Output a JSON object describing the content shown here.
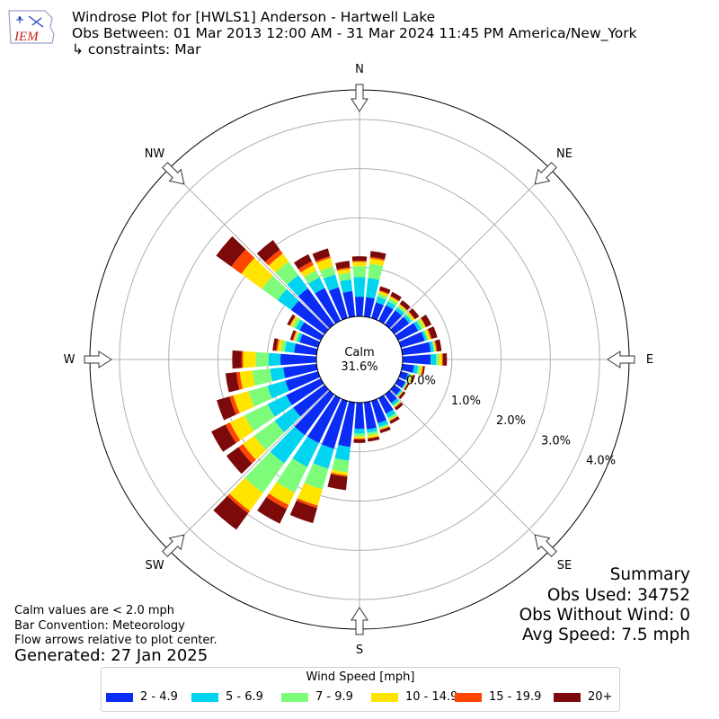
{
  "header": {
    "logo_text": "IEM",
    "line1": "Windrose Plot for [HWLS1] Anderson - Hartwell Lake",
    "line2": "Obs Between: 01 Mar 2013 12:00 AM - 31 Mar 2024 11:45 PM America/New_York",
    "line3": "↳ constraints: Mar"
  },
  "chart_data": {
    "type": "windrose",
    "calm": {
      "label": "Calm",
      "value_text": "31.6%",
      "value": 31.6
    },
    "radial_ticks": [
      0.0,
      1.0,
      2.0,
      3.0,
      4.0
    ],
    "radial_tick_labels": [
      "0.0%",
      "1.0%",
      "2.0%",
      "3.0%",
      "4.0%"
    ],
    "rmax": 4.6,
    "directions": [
      "N",
      "NE",
      "E",
      "SE",
      "S",
      "SW",
      "W",
      "NW"
    ],
    "bin_labels": [
      "2 - 4.9",
      "5 - 6.9",
      "7 - 9.9",
      "10 - 14.9",
      "15 - 19.9",
      "20+"
    ],
    "bin_colors": [
      "#0a2cf5",
      "#00d4f0",
      "#7dfc7a",
      "#ffe400",
      "#ff4600",
      "#7d0a0a"
    ],
    "sector_width_deg": 10,
    "sectors": [
      {
        "dir": 0,
        "values": [
          0.4,
          0.4,
          0.22,
          0.09,
          0.02,
          0.09
        ]
      },
      {
        "dir": 10,
        "values": [
          0.4,
          0.39,
          0.29,
          0.11,
          0.03,
          0.12
        ]
      },
      {
        "dir": 20,
        "values": [
          0.33,
          0.12,
          0.07,
          0.05,
          0.02,
          0.08
        ]
      },
      {
        "dir": 30,
        "values": [
          0.35,
          0.09,
          0.07,
          0.04,
          0.01,
          0.09
        ]
      },
      {
        "dir": 40,
        "values": [
          0.36,
          0.07,
          0.05,
          0.03,
          0.01,
          0.09
        ]
      },
      {
        "dir": 50,
        "values": [
          0.37,
          0.06,
          0.04,
          0.04,
          0.01,
          0.1
        ]
      },
      {
        "dir": 60,
        "values": [
          0.45,
          0.07,
          0.06,
          0.04,
          0.01,
          0.12
        ]
      },
      {
        "dir": 70,
        "values": [
          0.5,
          0.05,
          0.03,
          0.05,
          0.02,
          0.12
        ]
      },
      {
        "dir": 80,
        "values": [
          0.58,
          0.06,
          0.03,
          0.02,
          0.02,
          0.09
        ]
      },
      {
        "dir": 90,
        "values": [
          0.57,
          0.11,
          0.06,
          0.06,
          0.02,
          0.08
        ]
      },
      {
        "dir": 100,
        "values": [
          0.24,
          0.08,
          0.05,
          0.04,
          0.02,
          0.03
        ]
      },
      {
        "dir": 110,
        "values": [
          0.15,
          0.04,
          0.03,
          0.03,
          0.01,
          0.04
        ]
      },
      {
        "dir": 120,
        "values": [
          0.16,
          0.02,
          0.02,
          0.01,
          0.01,
          0.03
        ]
      },
      {
        "dir": 130,
        "values": [
          0.16,
          0.03,
          0.02,
          0.01,
          0.01,
          0.05
        ]
      },
      {
        "dir": 140,
        "values": [
          0.22,
          0.06,
          0.03,
          0.02,
          0.01,
          0.06
        ]
      },
      {
        "dir": 150,
        "values": [
          0.35,
          0.09,
          0.05,
          0.02,
          0.01,
          0.06
        ]
      },
      {
        "dir": 160,
        "values": [
          0.47,
          0.08,
          0.04,
          0.02,
          0.01,
          0.06
        ]
      },
      {
        "dir": 170,
        "values": [
          0.55,
          0.07,
          0.06,
          0.05,
          0.01,
          0.06
        ]
      },
      {
        "dir": 180,
        "values": [
          0.53,
          0.1,
          0.06,
          0.04,
          0.02,
          0.07
        ]
      },
      {
        "dir": 190,
        "values": [
          0.91,
          0.28,
          0.24,
          0.06,
          0.03,
          0.27
        ]
      },
      {
        "dir": 200,
        "values": [
          1.01,
          0.42,
          0.44,
          0.34,
          0.05,
          0.32
        ]
      },
      {
        "dir": 210,
        "values": [
          1.01,
          0.54,
          0.58,
          0.28,
          0.09,
          0.33
        ]
      },
      {
        "dir": 220,
        "values": [
          1.02,
          0.71,
          0.74,
          0.45,
          0.06,
          0.41
        ]
      },
      {
        "dir": 230,
        "values": [
          0.79,
          0.46,
          0.52,
          0.28,
          0.11,
          0.3
        ]
      },
      {
        "dir": 240,
        "values": [
          0.78,
          0.42,
          0.52,
          0.33,
          0.1,
          0.32
        ]
      },
      {
        "dir": 250,
        "values": [
          0.69,
          0.38,
          0.4,
          0.32,
          0.08,
          0.27
        ]
      },
      {
        "dir": 260,
        "values": [
          0.68,
          0.27,
          0.36,
          0.26,
          0.07,
          0.22
        ]
      },
      {
        "dir": 270,
        "values": [
          0.73,
          0.24,
          0.26,
          0.26,
          0.03,
          0.19
        ]
      },
      {
        "dir": 280,
        "values": [
          0.46,
          0.19,
          0.08,
          0.07,
          0.03,
          0.07
        ]
      },
      {
        "dir": 290,
        "values": [
          0.39,
          0.06,
          0.04,
          0.03,
          0.02,
          0.05
        ]
      },
      {
        "dir": 300,
        "values": [
          0.48,
          0.09,
          0.07,
          0.05,
          0.01,
          0.06
        ]
      },
      {
        "dir": 310,
        "values": [
          0.84,
          0.34,
          0.39,
          0.52,
          0.25,
          0.38
        ]
      },
      {
        "dir": 320,
        "values": [
          0.91,
          0.33,
          0.34,
          0.2,
          0.1,
          0.24
        ]
      },
      {
        "dir": 330,
        "values": [
          0.74,
          0.24,
          0.16,
          0.12,
          0.08,
          0.16
        ]
      },
      {
        "dir": 340,
        "values": [
          0.65,
          0.27,
          0.17,
          0.18,
          0.04,
          0.16
        ]
      },
      {
        "dir": 350,
        "values": [
          0.52,
          0.24,
          0.14,
          0.08,
          0.03,
          0.13
        ]
      }
    ]
  },
  "footer": {
    "calm_note": "Calm values are < 2.0 mph",
    "bar_convention": "Bar Convention: Meteorology",
    "flow_note": "Flow arrows relative to plot center.",
    "generated": "Generated: 27 Jan 2025"
  },
  "summary": {
    "title": "Summary",
    "obs_used": "Obs Used: 34752",
    "obs_without_wind": "Obs Without Wind: 0",
    "avg_speed": "Avg Speed: 7.5 mph"
  },
  "legend": {
    "title": "Wind Speed [mph]"
  }
}
